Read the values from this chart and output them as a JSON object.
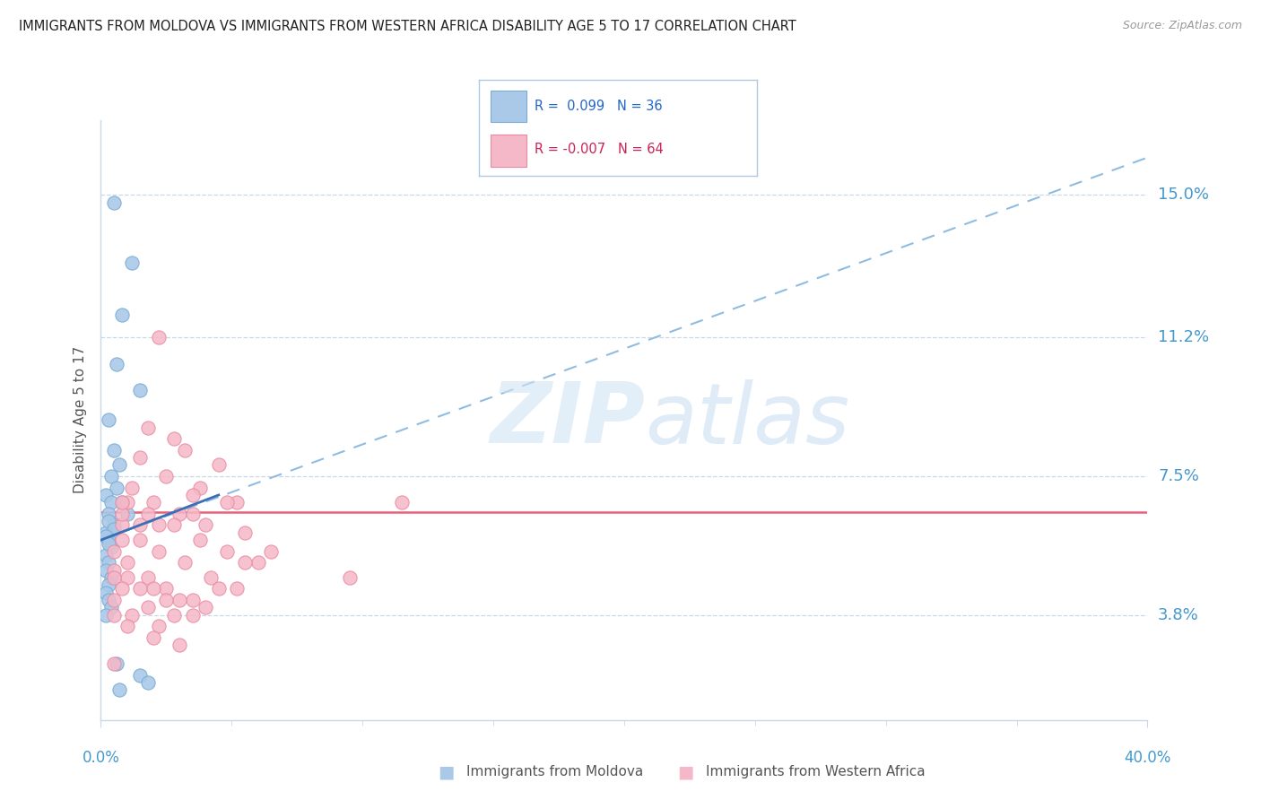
{
  "title": "IMMIGRANTS FROM MOLDOVA VS IMMIGRANTS FROM WESTERN AFRICA DISABILITY AGE 5 TO 17 CORRELATION CHART",
  "source": "Source: ZipAtlas.com",
  "ylabel": "Disability Age 5 to 17",
  "ytick_labels": [
    "3.8%",
    "7.5%",
    "11.2%",
    "15.0%"
  ],
  "ytick_values": [
    3.8,
    7.5,
    11.2,
    15.0
  ],
  "xlim": [
    0.0,
    40.0
  ],
  "ylim": [
    1.0,
    17.0
  ],
  "legend1_r": " 0.099",
  "legend1_n": "36",
  "legend2_r": "-0.007",
  "legend2_n": "64",
  "blue_color": "#aac9e8",
  "blue_edge_color": "#7aadd4",
  "pink_color": "#f5b8c8",
  "pink_edge_color": "#e88aa0",
  "trendline_blue_dashed_color": "#90bce0",
  "trendline_blue_solid_color": "#3a6fb5",
  "trendline_pink_color": "#e8607a",
  "grid_color": "#c8d8e8",
  "spine_color": "#c8d8e8",
  "watermark_zip_color": "#d0e4f4",
  "watermark_atlas_color": "#c0d8ee",
  "blue_scatter_x": [
    0.5,
    1.2,
    0.8,
    0.6,
    1.5,
    0.3,
    0.5,
    0.7,
    0.4,
    0.6,
    0.8,
    1.0,
    0.2,
    0.4,
    0.3,
    0.5,
    0.2,
    0.3,
    0.4,
    0.2,
    0.3,
    0.2,
    0.4,
    0.3,
    0.2,
    0.3,
    0.4,
    0.2,
    0.3,
    0.5,
    0.2,
    0.3,
    0.6,
    1.5,
    1.8,
    0.7
  ],
  "blue_scatter_y": [
    14.8,
    13.2,
    11.8,
    10.5,
    9.8,
    9.0,
    8.2,
    7.8,
    7.5,
    7.2,
    6.8,
    6.5,
    7.0,
    6.8,
    6.5,
    6.2,
    6.0,
    5.8,
    5.6,
    5.4,
    5.2,
    5.0,
    4.8,
    4.6,
    4.4,
    4.2,
    4.0,
    3.8,
    6.3,
    6.1,
    5.9,
    5.7,
    2.5,
    2.2,
    2.0,
    1.8
  ],
  "pink_scatter_x": [
    2.2,
    1.8,
    3.2,
    4.5,
    2.8,
    3.8,
    5.2,
    1.5,
    2.5,
    3.5,
    4.8,
    1.2,
    2.0,
    3.0,
    4.0,
    5.5,
    1.0,
    1.8,
    2.8,
    3.8,
    4.8,
    6.0,
    0.8,
    1.5,
    2.2,
    3.2,
    4.2,
    5.2,
    0.5,
    1.0,
    1.8,
    2.5,
    3.5,
    0.5,
    1.0,
    2.0,
    3.0,
    4.0,
    0.5,
    1.5,
    2.5,
    3.5,
    0.8,
    1.8,
    2.8,
    0.5,
    1.2,
    2.2,
    0.5,
    1.0,
    2.0,
    3.0,
    4.5,
    6.5,
    5.5,
    0.8,
    1.5,
    0.8,
    2.2,
    9.5,
    11.5,
    0.8,
    3.5,
    0.5
  ],
  "pink_scatter_y": [
    11.2,
    8.8,
    8.2,
    7.8,
    8.5,
    7.2,
    6.8,
    8.0,
    7.5,
    7.0,
    6.8,
    7.2,
    6.8,
    6.5,
    6.2,
    6.0,
    6.8,
    6.5,
    6.2,
    5.8,
    5.5,
    5.2,
    6.2,
    5.8,
    5.5,
    5.2,
    4.8,
    4.5,
    5.5,
    5.2,
    4.8,
    4.5,
    4.2,
    5.0,
    4.8,
    4.5,
    4.2,
    4.0,
    4.8,
    4.5,
    4.2,
    3.8,
    4.5,
    4.0,
    3.8,
    4.2,
    3.8,
    3.5,
    3.8,
    3.5,
    3.2,
    3.0,
    4.5,
    5.5,
    5.2,
    6.5,
    6.2,
    6.8,
    6.2,
    4.8,
    6.8,
    5.8,
    6.5,
    2.5
  ],
  "blue_trendline_x0": 0.0,
  "blue_trendline_y0": 5.8,
  "blue_trendline_x1": 40.0,
  "blue_trendline_y1": 16.0,
  "blue_solid_x0": 0.0,
  "blue_solid_y0": 5.8,
  "blue_solid_x1": 4.5,
  "blue_solid_y1": 7.0,
  "pink_trendline_y": 6.55,
  "axis_label_color": "#4499cc",
  "axis_tick_color": "#888888"
}
